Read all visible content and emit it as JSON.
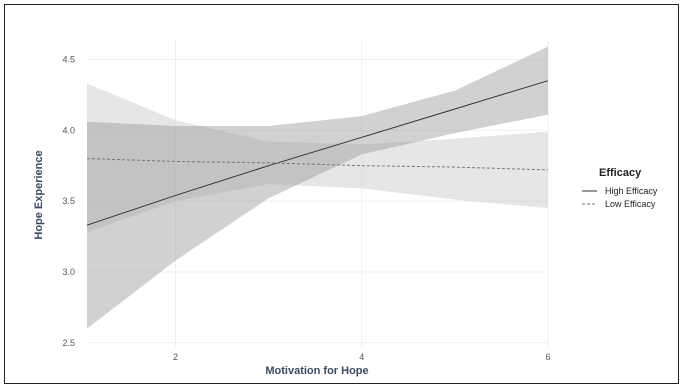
{
  "chart_data": {
    "type": "line",
    "title": "",
    "xlabel": "Motivation for Hope",
    "ylabel": "Hope Experience",
    "xlim": [
      1.05,
      6.0
    ],
    "ylim": [
      2.47,
      4.63
    ],
    "x_ticks": [
      2,
      4,
      6
    ],
    "y_ticks": [
      2.5,
      3.0,
      3.5,
      4.0,
      4.5
    ],
    "x_tick_labels": [
      "2",
      "4",
      "6"
    ],
    "y_tick_labels": [
      "2.5",
      "3.0",
      "3.5",
      "4.0",
      "4.5"
    ],
    "grid": true,
    "legend": {
      "title": "Efficacy",
      "placement": "right"
    },
    "series": [
      {
        "name": "High Efficacy",
        "line_style": "solid",
        "color": "#333333",
        "band_color": "#9a9a9a",
        "x": [
          1.05,
          2,
          3,
          4,
          5,
          6
        ],
        "y": [
          3.33,
          3.54,
          3.75,
          3.95,
          4.15,
          4.35
        ],
        "lower": [
          2.6,
          3.08,
          3.52,
          3.83,
          3.98,
          4.11
        ],
        "upper": [
          4.06,
          4.03,
          4.03,
          4.1,
          4.28,
          4.59
        ]
      },
      {
        "name": "Low Efficacy",
        "line_style": "dashed",
        "color": "#777777",
        "band_color": "#c8c8c8",
        "x": [
          1.05,
          2,
          3,
          4,
          5,
          6
        ],
        "y": [
          3.8,
          3.78,
          3.77,
          3.75,
          3.74,
          3.72
        ],
        "lower": [
          3.28,
          3.5,
          3.62,
          3.59,
          3.51,
          3.45
        ],
        "upper": [
          4.33,
          4.07,
          3.92,
          3.9,
          3.94,
          3.99
        ]
      }
    ]
  }
}
